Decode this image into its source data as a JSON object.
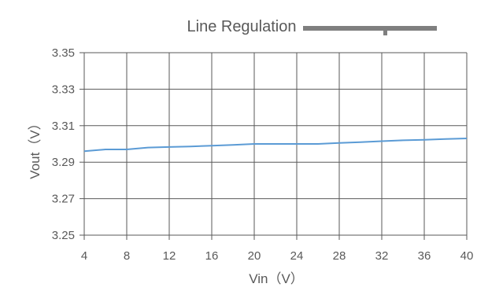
{
  "chart_data": {
    "type": "line",
    "title": "Line Regulation",
    "xlabel": "Vin（V）",
    "ylabel": "Vout（V）",
    "xlim": [
      4,
      40
    ],
    "ylim": [
      3.25,
      3.35
    ],
    "x_ticks": [
      "4",
      "8",
      "12",
      "16",
      "20",
      "24",
      "28",
      "32",
      "36",
      "40"
    ],
    "y_ticks": [
      "3.35",
      "3.33",
      "3.31",
      "3.29",
      "3.27",
      "3.25"
    ],
    "grid": true,
    "legend": "none",
    "series": [
      {
        "color": "#5b9bd5",
        "x": [
          4,
          6,
          8,
          10,
          12,
          14,
          16,
          18,
          20,
          22,
          24,
          26,
          28,
          30,
          32,
          34,
          36,
          38,
          40
        ],
        "y": [
          3.296,
          3.297,
          3.297,
          3.298,
          3.2983,
          3.2986,
          3.299,
          3.2995,
          3.3,
          3.3,
          3.3,
          3.3,
          3.3005,
          3.301,
          3.3015,
          3.302,
          3.3023,
          3.3027,
          3.303
        ]
      }
    ]
  },
  "colors": {
    "grid": "#595959",
    "text": "#595959",
    "redaction_bar": "#7f7f7f"
  }
}
